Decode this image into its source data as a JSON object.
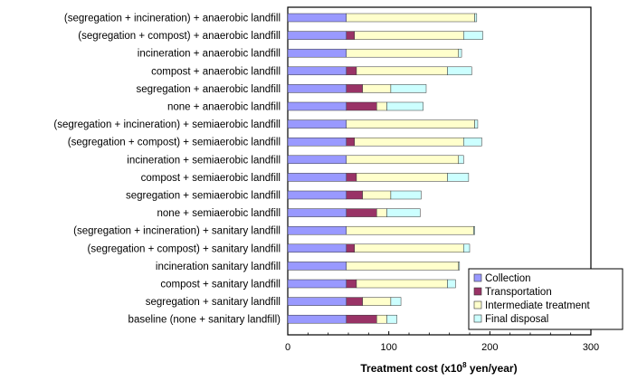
{
  "chart_data": {
    "type": "bar",
    "orientation": "horizontal",
    "stacked": true,
    "xlabel_main": "Treatment cost (x10",
    "xlabel_exp": "8",
    "xlabel_tail": " yen/year)",
    "xlim": [
      0,
      300
    ],
    "xticks": [
      "0",
      "100",
      "200",
      "300"
    ],
    "grid": false,
    "legend_position": "bottom-right",
    "categories": [
      "(segregation + incineration) + anaerobic landfill",
      "(segregation + compost) + anaerobic landfill",
      "incineration + anaerobic landfill",
      "compost + anaerobic landfill",
      "segregation + anaerobic landfill",
      "none + anaerobic landfill",
      "(segregation + incineration) + semiaerobic landfill",
      "(segregation + compost) + semiaerobic landfill",
      "incineration + semiaerobic landfill",
      "compost + semiaerobic landfill",
      "segregation + semiaerobic landfill",
      "none + semiaerobic landfill",
      "(segregation + incineration) + sanitary landfill",
      "(segregation + compost) + sanitary landfill",
      "incineration sanitary landfill",
      "compost + sanitary landfill",
      "segregation + sanitary landfill",
      "baseline (none + sanitary landfill)"
    ],
    "series": [
      {
        "name": "Collection",
        "color": "#9999ff",
        "values": [
          58,
          58,
          58,
          58,
          58,
          58,
          58,
          58,
          58,
          58,
          58,
          58,
          58,
          58,
          58,
          58,
          58,
          58
        ]
      },
      {
        "name": "Transportation",
        "color": "#993366",
        "values": [
          0,
          8,
          0,
          10,
          16,
          30,
          0,
          8,
          0,
          10,
          16,
          30,
          0,
          8,
          0,
          10,
          16,
          30
        ]
      },
      {
        "name": "Intermediate treatment",
        "color": "#ffffcc",
        "values": [
          127,
          108,
          111,
          90,
          28,
          10,
          127,
          108,
          111,
          90,
          28,
          10,
          126,
          108,
          111,
          90,
          28,
          10
        ]
      },
      {
        "name": "Final disposal",
        "color": "#ccffff",
        "values": [
          2,
          19,
          3,
          24,
          35,
          36,
          3,
          18,
          5,
          21,
          30,
          33,
          1,
          6,
          1,
          8,
          10,
          10
        ]
      }
    ]
  }
}
